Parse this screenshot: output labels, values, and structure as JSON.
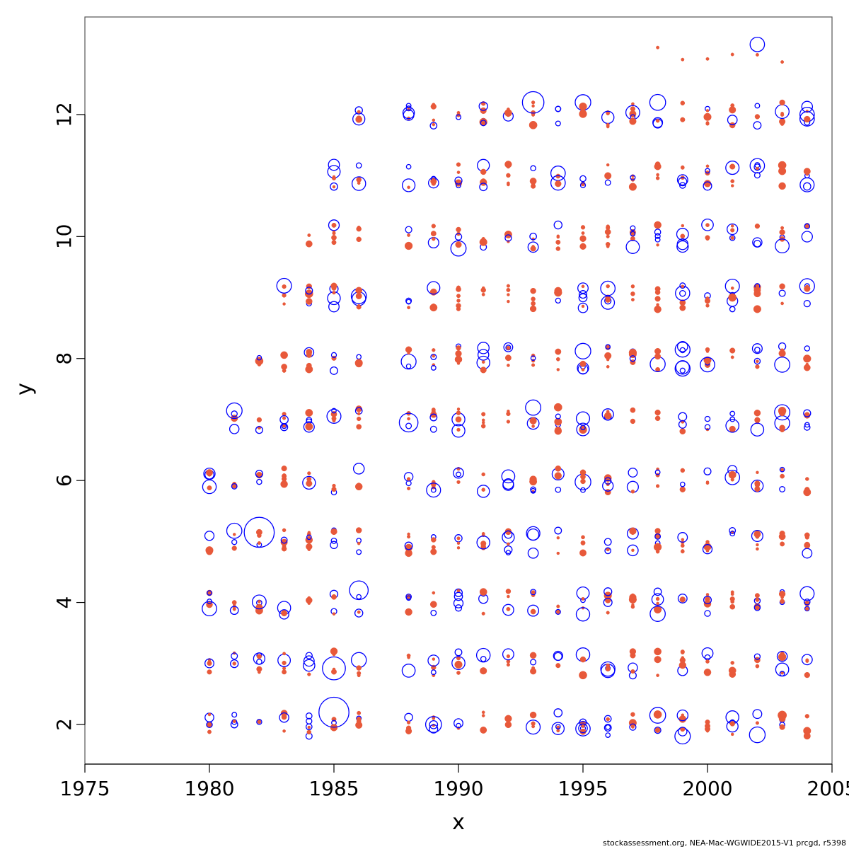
{
  "chart_data": {
    "type": "scatter",
    "xlabel": "x",
    "ylabel": "y",
    "xlim": [
      1975,
      2005
    ],
    "ylim": [
      1.35,
      13.6
    ],
    "xticks": [
      1975,
      1980,
      1985,
      1990,
      1995,
      2000,
      2005
    ],
    "yticks": [
      2,
      4,
      6,
      8,
      10,
      12
    ],
    "colors": {
      "positive": "#0000ff",
      "negative": "#e8593a"
    },
    "marker": "bubble",
    "grid": false,
    "legend": "none",
    "sample_points": [
      {
        "x": 1980,
        "y": 3.9,
        "size": 0.45,
        "sign": "positive"
      },
      {
        "x": 1982,
        "y": 5.15,
        "size": 1.0,
        "sign": "positive"
      },
      {
        "x": 1985,
        "y": 2.2,
        "size": 1.0,
        "sign": "positive"
      },
      {
        "x": 1985,
        "y": 2.92,
        "size": 0.75,
        "sign": "positive"
      },
      {
        "x": 1986,
        "y": 4.2,
        "size": 0.6,
        "sign": "positive"
      },
      {
        "x": 1988,
        "y": 6.95,
        "size": 0.6,
        "sign": "positive"
      },
      {
        "x": 1993,
        "y": 12.2,
        "size": 0.7,
        "sign": "positive"
      },
      {
        "x": 1998,
        "y": 12.2,
        "size": 0.5,
        "sign": "positive"
      },
      {
        "x": 2002,
        "y": 13.15,
        "size": 0.45,
        "sign": "positive"
      },
      {
        "x": 2004,
        "y": 11.93,
        "size": 0.45,
        "sign": "positive"
      },
      {
        "x": 1994,
        "y": 10.88,
        "size": 0.45,
        "sign": "positive"
      },
      {
        "x": 1996,
        "y": 9.15,
        "size": 0.45,
        "sign": "positive"
      },
      {
        "x": 2000,
        "y": 7.9,
        "size": 0.45,
        "sign": "positive"
      },
      {
        "x": 2001,
        "y": 6.05,
        "size": 0.45,
        "sign": "positive"
      },
      {
        "x": 1995,
        "y": 1.93,
        "size": 0.45,
        "sign": "positive"
      },
      {
        "x": 1998,
        "y": 2.15,
        "size": 0.5,
        "sign": "positive"
      },
      {
        "x": 1989,
        "y": 2.0,
        "size": 0.5,
        "sign": "positive"
      },
      {
        "x": 2003,
        "y": 2.9,
        "size": 0.4,
        "sign": "positive"
      },
      {
        "x": 2003,
        "y": 2.15,
        "size": 0.25,
        "sign": "negative"
      },
      {
        "x": 1994,
        "y": 7.2,
        "size": 0.22,
        "sign": "negative"
      },
      {
        "x": 2001,
        "y": 9.0,
        "size": 0.22,
        "sign": "negative"
      }
    ]
  },
  "footer": {
    "text": "stockassessment.org, NEA-Mac-WGWIDE2015-V1  prcgd, r5398"
  }
}
